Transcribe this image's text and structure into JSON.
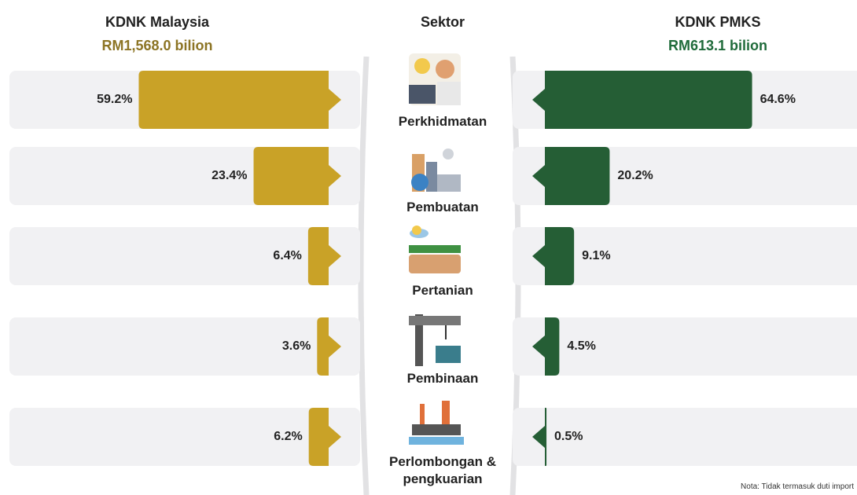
{
  "chart_data": {
    "type": "butterfly",
    "center_title": "Sektor",
    "categories": [
      "Perkhidmatan",
      "Pembuatan",
      "Pertanian",
      "Pembinaan",
      "Perlombongan & pengkuarian"
    ],
    "series": [
      {
        "name": "KDNK Malaysia",
        "subtitle": "RM1,568.0 bilion",
        "subtitle_color": "#8c7424",
        "color": "#c9a227",
        "values": [
          59.2,
          23.4,
          6.4,
          3.6,
          6.2
        ],
        "value_labels": [
          "59.2%",
          "23.4%",
          "6.4%",
          "3.6%",
          "6.2%"
        ]
      },
      {
        "name": "KDNK PMKS",
        "subtitle": "RM613.1 bilion",
        "subtitle_color": "#1f6b3a",
        "color": "#255e35",
        "values": [
          64.6,
          20.2,
          9.1,
          4.5,
          0.5
        ],
        "value_labels": [
          "64.6%",
          "20.2%",
          "9.1%",
          "4.5%",
          "0.5%"
        ]
      }
    ],
    "note": "Nota: Tidak termasuk duti import"
  }
}
